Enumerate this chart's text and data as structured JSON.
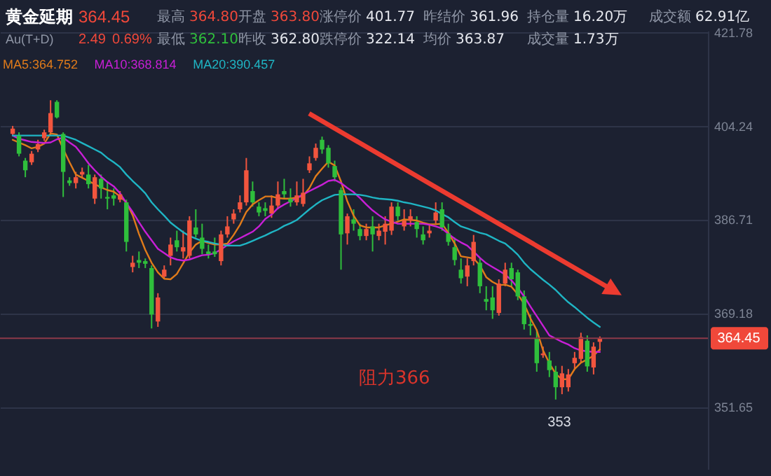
{
  "chart_data": {
    "type": "candlestick",
    "title": "黄金延期",
    "subtitle": "Au(T+D)",
    "categories": [
      null,
      null,
      null,
      null,
      null,
      null,
      null,
      null,
      null,
      null,
      null,
      null,
      null,
      null,
      null,
      null,
      null,
      null,
      null,
      null,
      null,
      null,
      null,
      null,
      null,
      null,
      null,
      null,
      null,
      null,
      null,
      null,
      null,
      null,
      null,
      null,
      null,
      null,
      null,
      null,
      null,
      null,
      null,
      null,
      null,
      null,
      null,
      null,
      null,
      null,
      null,
      null,
      null,
      null,
      null,
      null,
      null,
      null,
      null,
      null,
      null,
      null,
      null,
      null,
      null,
      null,
      null,
      null,
      null,
      null,
      null,
      null,
      null,
      null,
      null,
      null,
      null,
      null,
      null,
      null,
      null,
      null,
      null,
      null,
      null,
      null,
      null,
      null,
      null,
      null,
      null,
      null,
      null,
      null
    ],
    "ohlc": [
      [
        402.7,
        404.2,
        402.4,
        403.7
      ],
      [
        402.4,
        403.0,
        398.5,
        399.0
      ],
      [
        397.7,
        398.2,
        394.6,
        395.9
      ],
      [
        397.4,
        399.5,
        396.9,
        399.0
      ],
      [
        399.8,
        401.6,
        399.3,
        400.8
      ],
      [
        401.9,
        403.5,
        401.4,
        403.0
      ],
      [
        403.0,
        409.0,
        402.4,
        406.6
      ],
      [
        408.7,
        409.0,
        405.6,
        405.8
      ],
      [
        402.7,
        403.0,
        390.9,
        395.6
      ],
      [
        394.0,
        394.6,
        393.0,
        393.5
      ],
      [
        393.5,
        395.6,
        392.5,
        394.6
      ],
      [
        395.1,
        396.4,
        394.6,
        395.6
      ],
      [
        395.1,
        396.9,
        392.5,
        393.3
      ],
      [
        390.6,
        395.1,
        389.6,
        394.6
      ],
      [
        394.3,
        395.1,
        390.6,
        392.5
      ],
      [
        390.9,
        393.8,
        388.6,
        390.6
      ],
      [
        391.2,
        392.5,
        389.3,
        390.6
      ],
      [
        390.4,
        392.0,
        389.9,
        391.4
      ],
      [
        389.9,
        390.4,
        380.7,
        382.5
      ],
      [
        377.8,
        379.9,
        376.8,
        378.6
      ],
      [
        379.1,
        380.7,
        377.6,
        378.6
      ],
      [
        378.9,
        379.4,
        377.6,
        378.4
      ],
      [
        377.6,
        378.1,
        366.3,
        368.9
      ],
      [
        367.6,
        372.9,
        366.6,
        372.1
      ],
      [
        376.0,
        378.1,
        375.5,
        377.3
      ],
      [
        379.9,
        383.3,
        378.1,
        382.0
      ],
      [
        382.8,
        384.6,
        380.7,
        381.5
      ],
      [
        380.7,
        384.6,
        379.4,
        381.5
      ],
      [
        379.9,
        387.3,
        379.4,
        386.5
      ],
      [
        385.2,
        388.6,
        383.3,
        383.9
      ],
      [
        383.3,
        385.9,
        380.2,
        381.2
      ],
      [
        380.7,
        382.0,
        379.4,
        380.2
      ],
      [
        380.7,
        383.3,
        379.7,
        380.2
      ],
      [
        378.9,
        384.6,
        378.1,
        383.9
      ],
      [
        383.9,
        387.3,
        383.3,
        385.4
      ],
      [
        386.7,
        388.6,
        385.9,
        387.8
      ],
      [
        388.6,
        391.2,
        388.0,
        389.9
      ],
      [
        389.9,
        398.2,
        389.3,
        395.9
      ],
      [
        392.0,
        393.8,
        389.1,
        389.9
      ],
      [
        389.1,
        389.9,
        387.3,
        388.0
      ],
      [
        388.8,
        389.9,
        387.3,
        388.3
      ],
      [
        387.8,
        391.2,
        387.0,
        389.3
      ],
      [
        389.3,
        393.8,
        388.6,
        391.4
      ],
      [
        392.0,
        394.3,
        390.6,
        391.4
      ],
      [
        390.6,
        392.5,
        389.1,
        389.9
      ],
      [
        389.9,
        393.8,
        389.3,
        391.2
      ],
      [
        389.6,
        394.3,
        389.1,
        391.7
      ],
      [
        395.9,
        398.5,
        395.4,
        397.2
      ],
      [
        398.2,
        400.9,
        397.7,
        400.1
      ],
      [
        401.6,
        402.2,
        399.0,
        399.8
      ],
      [
        400.1,
        400.6,
        396.4,
        397.2
      ],
      [
        396.7,
        397.7,
        393.8,
        394.6
      ],
      [
        392.2,
        392.7,
        377.3,
        383.9
      ],
      [
        384.1,
        387.8,
        382.0,
        387.3
      ],
      [
        386.7,
        388.6,
        384.6,
        385.9
      ],
      [
        384.9,
        385.9,
        382.8,
        383.6
      ],
      [
        383.6,
        385.9,
        382.8,
        384.9
      ],
      [
        385.4,
        387.3,
        380.7,
        383.9
      ],
      [
        383.6,
        385.9,
        382.8,
        384.6
      ],
      [
        384.4,
        387.3,
        382.0,
        385.9
      ],
      [
        384.6,
        389.9,
        383.8,
        389.1
      ],
      [
        389.1,
        389.9,
        386.5,
        387.3
      ],
      [
        385.4,
        388.6,
        384.6,
        386.5
      ],
      [
        386.5,
        388.6,
        385.4,
        387.3
      ],
      [
        386.2,
        387.3,
        383.3,
        384.9
      ],
      [
        383.9,
        385.4,
        382.0,
        382.8
      ],
      [
        384.1,
        385.9,
        383.3,
        384.6
      ],
      [
        386.5,
        389.9,
        385.9,
        388.0
      ],
      [
        388.6,
        389.9,
        384.6,
        385.2
      ],
      [
        384.1,
        385.9,
        381.8,
        382.5
      ],
      [
        381.5,
        383.3,
        378.1,
        379.1
      ],
      [
        377.3,
        379.4,
        374.7,
        375.7
      ],
      [
        376.0,
        379.4,
        374.2,
        378.1
      ],
      [
        378.9,
        383.8,
        378.1,
        382.5
      ],
      [
        378.6,
        379.4,
        372.9,
        374.2
      ],
      [
        371.8,
        374.2,
        369.7,
        371.3
      ],
      [
        372.1,
        374.2,
        368.1,
        369.7
      ],
      [
        369.2,
        375.5,
        368.7,
        374.7
      ],
      [
        374.7,
        378.6,
        374.2,
        377.3
      ],
      [
        377.6,
        378.6,
        374.2,
        375.5
      ],
      [
        376.8,
        377.3,
        371.6,
        372.3
      ],
      [
        372.3,
        373.4,
        366.1,
        367.1
      ],
      [
        367.1,
        368.9,
        365.0,
        366.8
      ],
      [
        364.5,
        366.1,
        358.2,
        359.8
      ],
      [
        361.3,
        362.9,
        360.8,
        361.6
      ],
      [
        360.3,
        361.9,
        357.2,
        358.5
      ],
      [
        358.2,
        359.3,
        353.0,
        355.3
      ],
      [
        355.3,
        359.3,
        354.0,
        357.9
      ],
      [
        355.3,
        358.7,
        354.5,
        357.7
      ],
      [
        359.8,
        361.9,
        358.7,
        360.8
      ],
      [
        360.6,
        365.5,
        359.8,
        364.7
      ],
      [
        364.0,
        365.0,
        358.2,
        359.2
      ],
      [
        359.0,
        363.7,
        357.7,
        362.9
      ],
      [
        363.8,
        364.8,
        362.1,
        364.45
      ]
    ],
    "series": [
      {
        "type": "line",
        "name": "MA5:364.752",
        "color": "#e07b1a",
        "values": [
          401.6,
          401.1,
          400.6,
          400.0,
          400.3,
          400.9,
          402.8,
          402.6,
          399.9,
          397.4,
          395.1,
          394.5,
          393.9,
          393.3,
          392.7,
          392.2,
          391.9,
          391.0,
          389.9,
          387.5,
          384.0,
          381.0,
          378.6,
          376.8,
          375.6,
          375.5,
          376.5,
          378.5,
          380.5,
          382.0,
          382.7,
          382.3,
          382.0,
          382.0,
          382.2,
          383.8,
          385.7,
          388.1,
          389.5,
          390.3,
          391.0,
          391.0,
          390.7,
          390.6,
          390.6,
          390.8,
          391.1,
          392.6,
          394.8,
          396.2,
          397.5,
          396.8,
          393.8,
          390.1,
          387.4,
          385.6,
          385.2,
          385.2,
          385.2,
          385.6,
          385.9,
          386.3,
          386.7,
          386.6,
          386.5,
          386.1,
          385.8,
          385.8,
          385.9,
          384.2,
          382.2,
          379.8,
          379.6,
          379.4,
          378.1,
          375.9,
          375.0,
          374.4,
          374.5,
          374.1,
          372.7,
          370.9,
          368.2,
          366.0,
          362.2,
          359.8,
          357.8,
          356.8,
          356.8,
          358.7,
          359.9,
          360.5,
          361.2,
          362.4
        ]
      },
      {
        "type": "line",
        "name": "MA10:368.814",
        "color": "#c81fd6",
        "values": [
          402.4,
          401.8,
          401.5,
          401.2,
          401.1,
          401.0,
          401.1,
          401.7,
          402.0,
          401.1,
          400.3,
          398.8,
          397.2,
          395.9,
          394.7,
          393.7,
          392.9,
          391.6,
          389.8,
          388.1,
          386.2,
          384.4,
          382.8,
          381.2,
          380.4,
          379.6,
          379.2,
          379.0,
          379.2,
          379.6,
          380.0,
          380.1,
          380.4,
          381.1,
          381.9,
          382.6,
          383.2,
          383.8,
          384.4,
          385.4,
          386.8,
          387.6,
          388.8,
          389.5,
          390.1,
          390.7,
          391.4,
          392.0,
          392.6,
          393.2,
          393.9,
          394.1,
          393.5,
          392.6,
          391.8,
          390.7,
          389.5,
          388.4,
          387.5,
          386.7,
          386.3,
          385.9,
          385.9,
          385.9,
          385.9,
          385.9,
          385.7,
          385.4,
          385.0,
          384.0,
          383.1,
          382.4,
          381.8,
          380.7,
          379.5,
          378.5,
          377.8,
          377.1,
          376.4,
          375.3,
          373.9,
          372.3,
          370.4,
          368.6,
          366.8,
          365.0,
          364.4,
          363.8,
          363.3,
          362.6,
          362.2,
          362.0,
          361.9,
          361.9
        ]
      },
      {
        "type": "line",
        "name": "MA20:390.457",
        "color": "#1fb5c4",
        "values": [
          402.4,
          402.4,
          402.4,
          402.4,
          402.4,
          402.4,
          402.4,
          402.4,
          402.4,
          402.0,
          401.6,
          401.0,
          400.4,
          399.8,
          399.2,
          398.2,
          397.4,
          396.5,
          395.1,
          393.9,
          392.8,
          391.6,
          389.9,
          388.6,
          387.4,
          386.1,
          385.2,
          384.3,
          383.6,
          383.1,
          382.7,
          382.5,
          382.2,
          382.0,
          381.8,
          381.8,
          381.8,
          382.2,
          382.7,
          383.2,
          383.7,
          384.3,
          384.8,
          385.5,
          386.0,
          386.6,
          387.6,
          388.6,
          389.5,
          390.3,
          390.8,
          391.3,
          391.4,
          391.4,
          391.4,
          391.3,
          391.1,
          390.8,
          390.6,
          390.5,
          390.4,
          390.2,
          389.9,
          389.7,
          389.4,
          389.1,
          388.8,
          388.4,
          387.7,
          387.1,
          386.2,
          385.4,
          385.0,
          384.6,
          384.2,
          383.9,
          383.3,
          382.7,
          382.2,
          381.2,
          380.1,
          378.6,
          377.4,
          376.4,
          375.4,
          374.5,
          373.5,
          372.3,
          371.2,
          370.3,
          369.3,
          368.3,
          367.4,
          366.6
        ]
      }
    ],
    "ylim": [
      340,
      422
    ],
    "yticks": [
      351.65,
      369.18,
      386.71,
      404.24,
      421.78
    ],
    "ref_lines": [
      {
        "axis": "y",
        "value": 364.45,
        "label": "364.45",
        "color": "#8c3a4a"
      }
    ],
    "annotations": [
      "364.45",
      "2.49",
      "0.69%",
      "最高",
      "364.80",
      "开盘",
      "363.80",
      "涨停价",
      "401.77",
      "昨结价",
      "361.96",
      "持仓量",
      "16.20万",
      "成交额",
      "62.91亿",
      "最低",
      "362.10",
      "昨收",
      "362.80",
      "跌停价",
      "322.14",
      "均价",
      "363.87",
      "成交量",
      "1.73万",
      "阻力366",
      {
        "text": "353",
        "y": 353
      }
    ],
    "grid": "y",
    "tick_labels": "y"
  }
}
